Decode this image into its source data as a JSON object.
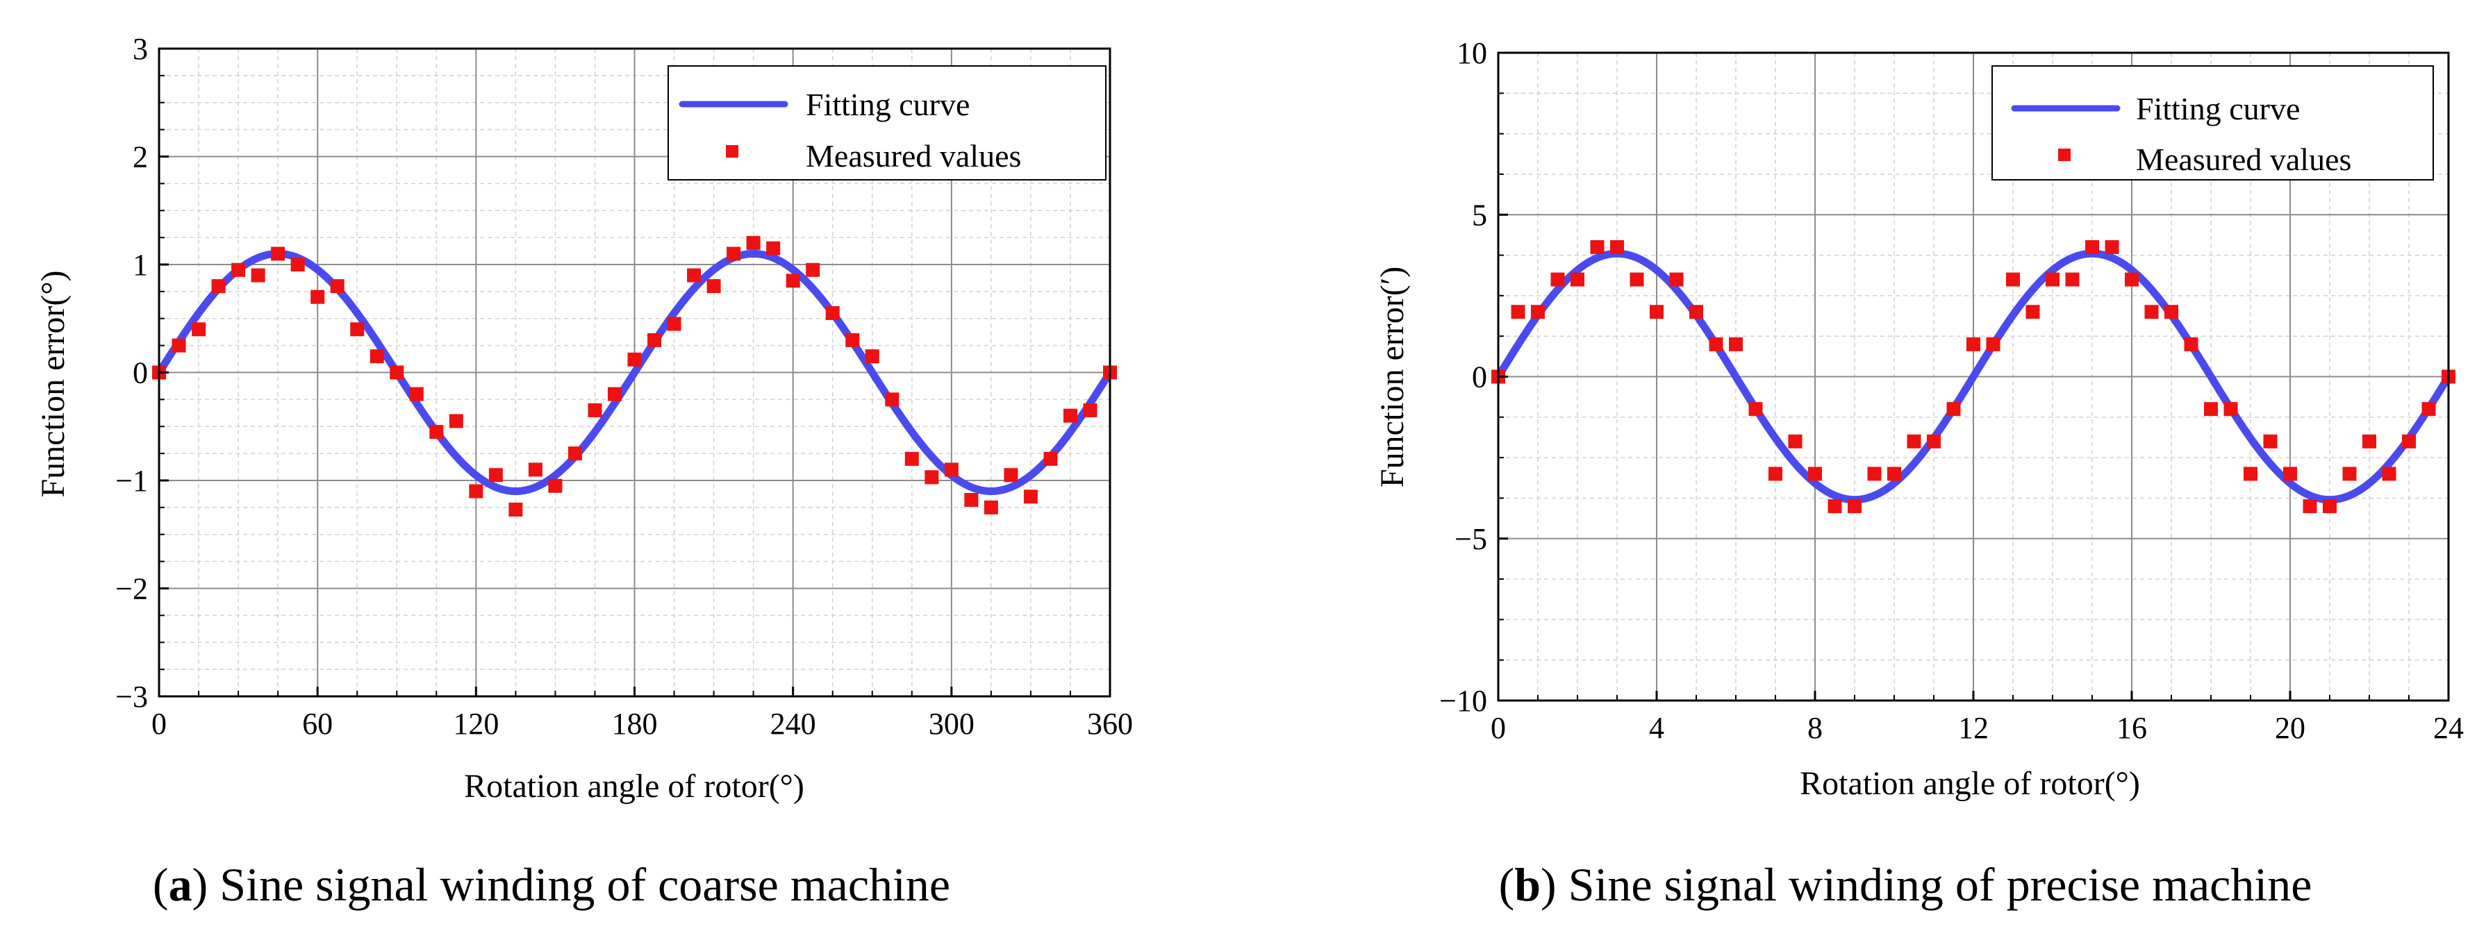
{
  "colors": {
    "fit": "#4a4af0",
    "measured": "#ee1111",
    "grid_major": "#8c8c8c",
    "grid_minor": "#d2d2d2",
    "axis": "#000000"
  },
  "chart_data": [
    {
      "type": "line+scatter",
      "panel": "a",
      "caption_letter": "a",
      "caption_text": "Sine signal winding of coarse machine",
      "xlabel": "Rotation angle of rotor(°)",
      "ylabel": "Function error(°)",
      "xlim": [
        0,
        360
      ],
      "ylim": [
        -3,
        3
      ],
      "xticks": [
        0,
        60,
        120,
        180,
        240,
        300,
        360
      ],
      "yticks": [
        -3,
        -2,
        -1,
        0,
        1,
        2,
        3
      ],
      "xtick_labels": [
        "0",
        "60",
        "120",
        "180",
        "240",
        "300",
        "360"
      ],
      "ytick_labels": [
        "−3",
        "−2",
        "−1",
        "0",
        "1",
        "2",
        "3"
      ],
      "legend": {
        "placement": "top-right",
        "fit_label": "Fitting curve",
        "measured_label": "Measured values"
      },
      "fit": {
        "function": "amplitude*sin(2*pi*x/period)",
        "amplitude": 1.1,
        "period": 180
      },
      "series": [
        {
          "name": "Measured values",
          "x": [
            0,
            7.5,
            15,
            22.5,
            30,
            37.5,
            45,
            52.5,
            60,
            67.5,
            75,
            82.5,
            90,
            97.5,
            105,
            112.5,
            120,
            127.5,
            135,
            142.5,
            150,
            157.5,
            165,
            172.5,
            180,
            187.5,
            195,
            202.5,
            210,
            217.5,
            225,
            232.5,
            240,
            247.5,
            255,
            262.5,
            270,
            277.5,
            285,
            292.5,
            300,
            307.5,
            315,
            322.5,
            330,
            337.5,
            345,
            352.5,
            360
          ],
          "y": [
            0,
            0.25,
            0.4,
            0.8,
            0.95,
            0.9,
            1.1,
            1.0,
            0.7,
            0.8,
            0.4,
            0.15,
            0.0,
            -0.2,
            -0.55,
            -0.45,
            -1.1,
            -0.95,
            -1.27,
            -0.9,
            -1.05,
            -0.75,
            -0.35,
            -0.2,
            0.12,
            0.3,
            0.45,
            0.9,
            0.8,
            1.1,
            1.2,
            1.15,
            0.85,
            0.95,
            0.55,
            0.3,
            0.15,
            -0.25,
            -0.8,
            -0.97,
            -0.9,
            -1.18,
            -1.25,
            -0.95,
            -1.15,
            -0.8,
            -0.4,
            -0.35,
            0.0
          ]
        }
      ]
    },
    {
      "type": "line+scatter",
      "panel": "b",
      "caption_letter": "b",
      "caption_text": "Sine signal winding of precise machine",
      "xlabel": "Rotation angle of rotor(°)",
      "ylabel": "Function error(′)",
      "xlim": [
        0,
        24
      ],
      "ylim": [
        -10,
        10
      ],
      "xticks": [
        0,
        4,
        8,
        12,
        16,
        20,
        24
      ],
      "yticks": [
        -10,
        -5,
        0,
        5,
        10
      ],
      "xtick_labels": [
        "0",
        "4",
        "8",
        "12",
        "16",
        "20",
        "24"
      ],
      "ytick_labels": [
        "−10",
        "−5",
        "0",
        "5",
        "10"
      ],
      "legend": {
        "placement": "top-right",
        "fit_label": "Fitting curve",
        "measured_label": "Measured values"
      },
      "fit": {
        "function": "amplitude*sin(2*pi*x/period)",
        "amplitude": 3.8,
        "period": 12
      },
      "series": [
        {
          "name": "Measured values",
          "x": [
            0,
            0.5,
            1,
            1.5,
            2,
            2.5,
            3,
            3.5,
            4,
            4.5,
            5,
            5.5,
            6,
            6.5,
            7,
            7.5,
            8,
            8.5,
            9,
            9.5,
            10,
            10.5,
            11,
            11.5,
            12,
            12.5,
            13,
            13.5,
            14,
            14.5,
            15,
            15.5,
            16,
            16.5,
            17,
            17.5,
            18,
            18.5,
            19,
            19.5,
            20,
            20.5,
            21,
            21.5,
            22,
            22.5,
            23,
            23.5,
            24
          ],
          "y": [
            0,
            2,
            2,
            3,
            3,
            4,
            4,
            3,
            2,
            3,
            2,
            1,
            1,
            -1,
            -3,
            -2,
            -3,
            -4,
            -4,
            -3,
            -3,
            -2,
            -2,
            -1,
            1,
            1,
            3,
            2,
            3,
            3,
            4,
            4,
            3,
            2,
            2,
            1,
            -1,
            -1,
            -3,
            -2,
            -3,
            -4,
            -4,
            -3,
            -2,
            -3,
            -2,
            -1,
            0
          ]
        }
      ]
    }
  ]
}
